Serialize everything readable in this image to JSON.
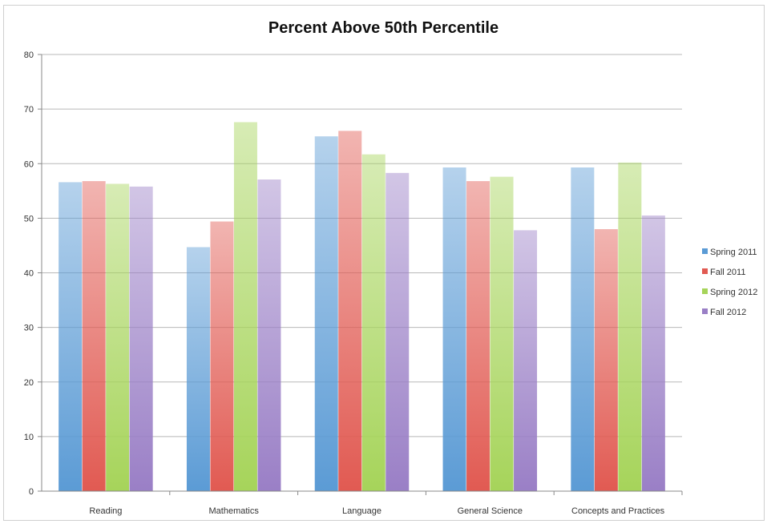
{
  "chart_data": {
    "type": "bar",
    "title": "Percent Above 50th Percentile",
    "xlabel": "",
    "ylabel": "",
    "ylim": [
      0,
      80
    ],
    "yticks": [
      0,
      10,
      20,
      30,
      40,
      50,
      60,
      70,
      80
    ],
    "grid": true,
    "legend_position": "right",
    "categories": [
      "Reading",
      "Mathematics",
      "Language",
      "General Science",
      "Concepts and Practices"
    ],
    "series": [
      {
        "name": "Spring 2011",
        "color": "#5b9bd5",
        "values": [
          56.6,
          44.7,
          65.0,
          59.3,
          59.3
        ]
      },
      {
        "name": "Fall 2011",
        "color": "#e15a52",
        "values": [
          56.8,
          49.4,
          66.0,
          56.8,
          48.0
        ]
      },
      {
        "name": "Spring 2012",
        "color": "#a6d45a",
        "values": [
          56.3,
          67.6,
          61.7,
          57.6,
          60.2
        ]
      },
      {
        "name": "Fall 2012",
        "color": "#9a7fc6",
        "values": [
          55.8,
          57.1,
          58.3,
          47.8,
          50.5
        ]
      }
    ]
  }
}
